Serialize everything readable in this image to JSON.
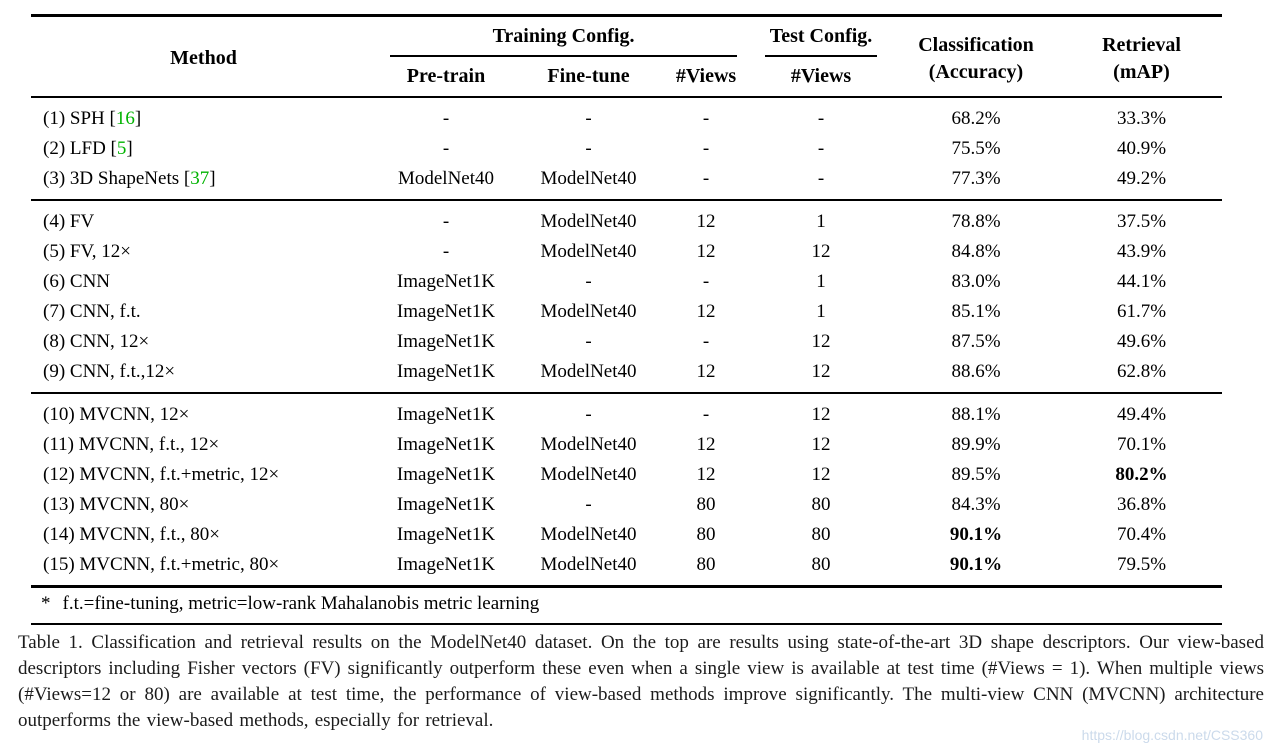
{
  "colors": {
    "citation_green": "#00b300",
    "text": "#000000",
    "watermark": "#c3d4e8"
  },
  "table": {
    "header": {
      "method": "Method",
      "training_config": "Training Config.",
      "test_config": "Test Config.",
      "classification_line1": "Classification",
      "classification_line2": "(Accuracy)",
      "retrieval_line1": "Retrieval",
      "retrieval_line2": "(mAP)",
      "pretrain": "Pre-train",
      "finetune": "Fine-tune",
      "views_train": "#Views",
      "views_test": "#Views"
    },
    "groups": [
      {
        "rows": [
          {
            "method": "(1) SPH",
            "citation": "16",
            "pretrain": "-",
            "finetune": "-",
            "train_views": "-",
            "test_views": "-",
            "accuracy": "68.2%",
            "map": "33.3%"
          },
          {
            "method": "(2) LFD",
            "citation": "5",
            "pretrain": "-",
            "finetune": "-",
            "train_views": "-",
            "test_views": "-",
            "accuracy": "75.5%",
            "map": "40.9%"
          },
          {
            "method": "(3) 3D ShapeNets",
            "citation": "37",
            "pretrain": "ModelNet40",
            "finetune": "ModelNet40",
            "train_views": "-",
            "test_views": "-",
            "accuracy": "77.3%",
            "map": "49.2%"
          }
        ]
      },
      {
        "rows": [
          {
            "method": "(4) FV",
            "pretrain": "-",
            "finetune": "ModelNet40",
            "train_views": "12",
            "test_views": "1",
            "accuracy": "78.8%",
            "map": "37.5%"
          },
          {
            "method": "(5) FV, 12×",
            "pretrain": "-",
            "finetune": "ModelNet40",
            "train_views": "12",
            "test_views": "12",
            "accuracy": "84.8%",
            "map": "43.9%"
          },
          {
            "method": "(6) CNN",
            "pretrain": "ImageNet1K",
            "finetune": "-",
            "train_views": "-",
            "test_views": "1",
            "accuracy": "83.0%",
            "map": "44.1%"
          },
          {
            "method": "(7) CNN, f.t.",
            "pretrain": "ImageNet1K",
            "finetune": "ModelNet40",
            "train_views": "12",
            "test_views": "1",
            "accuracy": "85.1%",
            "map": "61.7%"
          },
          {
            "method": "(8) CNN, 12×",
            "pretrain": "ImageNet1K",
            "finetune": "-",
            "train_views": "-",
            "test_views": "12",
            "accuracy": "87.5%",
            "map": "49.6%"
          },
          {
            "method": "(9) CNN, f.t.,12×",
            "pretrain": "ImageNet1K",
            "finetune": "ModelNet40",
            "train_views": "12",
            "test_views": "12",
            "accuracy": "88.6%",
            "map": "62.8%"
          }
        ]
      },
      {
        "rows": [
          {
            "method": "(10) MVCNN, 12×",
            "pretrain": "ImageNet1K",
            "finetune": "-",
            "train_views": "-",
            "test_views": "12",
            "accuracy": "88.1%",
            "map": "49.4%"
          },
          {
            "method": "(11) MVCNN, f.t., 12×",
            "pretrain": "ImageNet1K",
            "finetune": "ModelNet40",
            "train_views": "12",
            "test_views": "12",
            "accuracy": "89.9%",
            "map": "70.1%"
          },
          {
            "method": "(12) MVCNN, f.t.+metric, 12×",
            "pretrain": "ImageNet1K",
            "finetune": "ModelNet40",
            "train_views": "12",
            "test_views": "12",
            "accuracy": "89.5%",
            "map": "80.2%",
            "map_bold": true
          },
          {
            "method": "(13) MVCNN, 80×",
            "pretrain": "ImageNet1K",
            "finetune": "-",
            "train_views": "80",
            "test_views": "80",
            "accuracy": "84.3%",
            "map": "36.8%"
          },
          {
            "method": "(14) MVCNN, f.t., 80×",
            "pretrain": "ImageNet1K",
            "finetune": "ModelNet40",
            "train_views": "80",
            "test_views": "80",
            "accuracy": "90.1%",
            "accuracy_bold": true,
            "map": "70.4%"
          },
          {
            "method": "(15) MVCNN, f.t.+metric, 80×",
            "pretrain": "ImageNet1K",
            "finetune": "ModelNet40",
            "train_views": "80",
            "test_views": "80",
            "accuracy": "90.1%",
            "accuracy_bold": true,
            "map": "79.5%"
          }
        ]
      }
    ],
    "footnote": {
      "marker": "*",
      "text": "f.t.=fine-tuning, metric=low-rank Mahalanobis metric learning"
    }
  },
  "caption": "Table 1. Classification and retrieval results on the ModelNet40 dataset. On the top are results using state-of-the-art 3D shape descriptors. Our view-based descriptors including Fisher vectors (FV) significantly outperform these even when a single view is available at test time (#Views = 1). When multiple views (#Views=12 or 80) are available at test time, the performance of view-based methods improve significantly. The multi-view CNN (MVCNN) architecture outperforms the view-based methods, especially for retrieval.",
  "watermark": "https://blog.csdn.net/CSS360"
}
